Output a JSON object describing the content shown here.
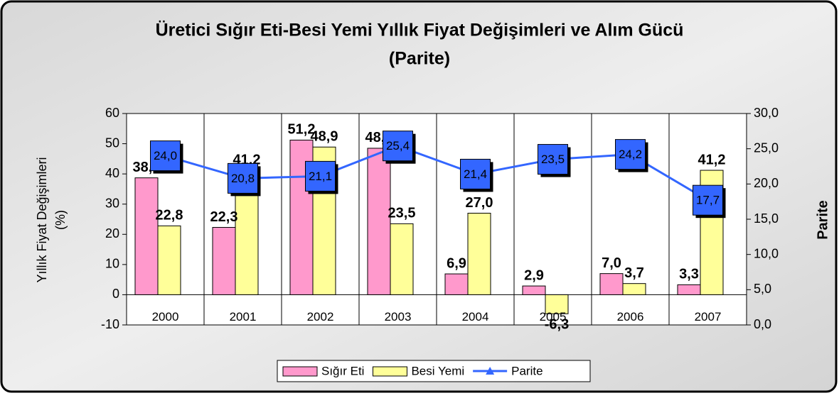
{
  "chart_data": {
    "type": "combo",
    "title": [
      "Üretici Sığır Eti-Besi Yemi Yıllık Fiyat Değişimleri ve Alım Gücü",
      "(Parite)"
    ],
    "ylabel": [
      "Yıllık Fiyat Değişimleri",
      "(%)"
    ],
    "y2label": "Parite",
    "categories": [
      "2000",
      "2001",
      "2002",
      "2003",
      "2004",
      "2005",
      "2006",
      "2007"
    ],
    "series": [
      {
        "name": "Sığır Eti",
        "type": "bar",
        "color": "#ff99cc",
        "values": [
          38.7,
          22.3,
          51.2,
          48.5,
          6.9,
          2.9,
          7.0,
          3.3
        ],
        "value_labels": [
          "38,7",
          "22,3",
          "51,2",
          "48,5",
          "6,9",
          "2,9",
          "7,0",
          "3,3"
        ]
      },
      {
        "name": "Besi Yemi",
        "type": "bar",
        "color": "#ffff99",
        "values": [
          22.8,
          41.2,
          48.9,
          23.5,
          27.0,
          -6.3,
          3.7,
          41.2
        ],
        "value_labels": [
          "22,8",
          "41,2",
          "48,9",
          "23,5",
          "27,0",
          "-6,3",
          "3,7",
          "41,2"
        ]
      },
      {
        "name": "Parite",
        "type": "line",
        "axis": "y2",
        "color": "#3366ff",
        "values": [
          24.0,
          20.8,
          21.1,
          25.4,
          21.4,
          23.5,
          24.2,
          17.7
        ],
        "value_labels": [
          "24,0",
          "20,8",
          "21,1",
          "25,4",
          "21,4",
          "23,5",
          "24,2",
          "17,7"
        ]
      }
    ],
    "ylim": [
      -10,
      60
    ],
    "yticks": [
      -10,
      0,
      10,
      20,
      30,
      40,
      50,
      60
    ],
    "y2lim": [
      0,
      30
    ],
    "y2ticks": [
      {
        "value": 0,
        "label": "0,0"
      },
      {
        "value": 5,
        "label": "5,0"
      },
      {
        "value": 10,
        "label": "10,0"
      },
      {
        "value": 15,
        "label": "15,0"
      },
      {
        "value": 20,
        "label": "20,0"
      },
      {
        "value": 25,
        "label": "25,0"
      },
      {
        "value": 30,
        "label": "30,0"
      }
    ],
    "legend": "bottom"
  }
}
